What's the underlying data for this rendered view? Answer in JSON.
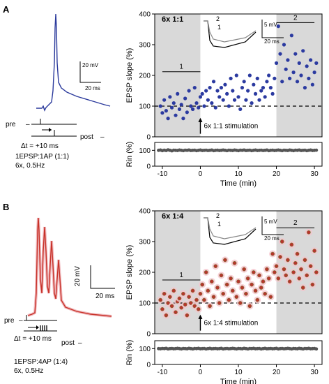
{
  "panels": [
    {
      "letter": "A",
      "protocol_title": "6x 1:1",
      "pairing_label": "1EPSP:1AP (1:1)",
      "repeat_label": "6x, 0.5Hz",
      "delta_t": "Δt = +10 ms",
      "pre": "pre",
      "post": "post",
      "scalebar_v": "20 mV",
      "scalebar_h": "20 ms",
      "inset_v": "5 mV",
      "inset_h": "20 ms",
      "inset_1": "1",
      "inset_2": "2",
      "stim_label": "6x 1:1 stimulation",
      "period1": "1",
      "period2": "2",
      "trace_color": "#2b3a9c",
      "dot_color": "#2b3aa0"
    },
    {
      "letter": "B",
      "protocol_title": "6x 1:4",
      "pairing_label": "1EPSP:4AP (1:4)",
      "repeat_label": "6x, 0.5Hz",
      "delta_t": "Δt = +10 ms",
      "pre": "pre",
      "post": "post",
      "scalebar_v": "20 mV",
      "scalebar_h": "20 ms",
      "inset_v": "5 mV",
      "inset_h": "20 ms",
      "inset_1": "1",
      "inset_2": "2",
      "stim_label": "6x 1:4 stimulation",
      "period1": "1",
      "period2": "2",
      "trace_color": "#c8332a",
      "dot_color": "#b5362c"
    }
  ],
  "chart_data": [
    {
      "type": "scatter",
      "title": "6x 1:1",
      "xlabel": "Time (min)",
      "ylabel": "EPSP slope (%)",
      "xlim": [
        -12,
        32
      ],
      "ylim": [
        0,
        400
      ],
      "xticks": [
        -10,
        0,
        10,
        20,
        30
      ],
      "yticks": [
        0,
        100,
        200,
        300,
        400
      ],
      "baseline": 100,
      "shaded_periods": [
        [
          -12,
          0
        ],
        [
          20,
          32
        ]
      ],
      "period_bars": [
        {
          "label": "1",
          "x": [
            -10,
            0
          ],
          "y": 212
        },
        {
          "label": "2",
          "x": [
            20,
            30
          ],
          "y": 372
        }
      ],
      "x": [
        -10.5,
        -10,
        -9.5,
        -9,
        -8.5,
        -8,
        -7.5,
        -7,
        -6.5,
        -6,
        -5.5,
        -5,
        -4.5,
        -4,
        -3.5,
        -3,
        -2.5,
        -2,
        -1.5,
        -1,
        -0.5,
        0,
        0.5,
        1,
        1.5,
        2,
        2.5,
        3,
        3.5,
        4,
        4.5,
        5,
        5.5,
        6,
        6.5,
        7,
        7.5,
        8,
        8.5,
        9,
        9.5,
        10,
        10.5,
        11,
        11.5,
        12,
        12.5,
        13,
        13.5,
        14,
        14.5,
        15,
        15.5,
        16,
        16.5,
        17,
        17.5,
        18,
        18.5,
        19,
        19.5,
        20,
        20.5,
        21,
        21.5,
        22,
        22.5,
        23,
        23.5,
        24,
        24.5,
        25,
        25.5,
        26,
        26.5,
        27,
        27.5,
        28,
        28.5,
        29,
        29.5,
        30,
        30.5
      ],
      "y": [
        100,
        78,
        120,
        85,
        60,
        130,
        95,
        110,
        70,
        140,
        90,
        105,
        60,
        125,
        80,
        150,
        100,
        90,
        160,
        110,
        95,
        130,
        140,
        100,
        150,
        120,
        160,
        110,
        180,
        95,
        150,
        130,
        160,
        120,
        170,
        140,
        100,
        190,
        150,
        120,
        200,
        130,
        90,
        160,
        180,
        120,
        150,
        200,
        110,
        170,
        140,
        190,
        120,
        150,
        160,
        130,
        180,
        200,
        160,
        140,
        190,
        240,
        360,
        270,
        180,
        300,
        220,
        250,
        190,
        330,
        210,
        270,
        180,
        240,
        200,
        280,
        160,
        230,
        190,
        250,
        170,
        210,
        240
      ],
      "stimulation_at": 0,
      "stimulation_label": "6x 1:1 stimulation"
    },
    {
      "type": "scatter",
      "title": "6x 1:4",
      "xlabel": "Time (min)",
      "ylabel": "EPSP slope (%)",
      "xlim": [
        -12,
        32
      ],
      "ylim": [
        0,
        400
      ],
      "xticks": [
        -10,
        0,
        10,
        20,
        30
      ],
      "yticks": [
        0,
        100,
        200,
        300,
        400
      ],
      "baseline": 100,
      "shaded_periods": [
        [
          -12,
          0
        ],
        [
          20,
          32
        ]
      ],
      "period_bars": [
        {
          "label": "1",
          "x": [
            -10,
            0
          ],
          "y": 175
        },
        {
          "label": "2",
          "x": [
            20,
            30
          ],
          "y": 345
        }
      ],
      "x": [
        -10.5,
        -10,
        -9.5,
        -9,
        -8.5,
        -8,
        -7.5,
        -7,
        -6.5,
        -6,
        -5.5,
        -5,
        -4.5,
        -4,
        -3.5,
        -3,
        -2.5,
        -2,
        -1.5,
        -1,
        -0.5,
        0,
        0.5,
        1,
        1.5,
        2,
        2.5,
        3,
        3.5,
        4,
        4.5,
        5,
        5.5,
        6,
        6.5,
        7,
        7.5,
        8,
        8.5,
        9,
        9.5,
        10,
        10.5,
        11,
        11.5,
        12,
        12.5,
        13,
        13.5,
        14,
        14.5,
        15,
        15.5,
        16,
        16.5,
        17,
        17.5,
        18,
        18.5,
        19,
        19.5,
        20,
        20.5,
        21,
        21.5,
        22,
        22.5,
        23,
        23.5,
        24,
        24.5,
        25,
        25.5,
        26,
        26.5,
        27,
        27.5,
        28,
        28.5,
        29,
        29.5,
        30,
        30.5
      ],
      "y": [
        110,
        80,
        130,
        60,
        100,
        120,
        90,
        140,
        70,
        105,
        115,
        85,
        130,
        95,
        60,
        120,
        100,
        140,
        90,
        110,
        80,
        130,
        160,
        110,
        200,
        140,
        90,
        170,
        120,
        220,
        150,
        100,
        190,
        130,
        240,
        160,
        110,
        180,
        140,
        230,
        120,
        170,
        100,
        150,
        210,
        130,
        180,
        90,
        160,
        200,
        140,
        110,
        190,
        150,
        170,
        130,
        210,
        180,
        120,
        260,
        200,
        220,
        180,
        250,
        300,
        210,
        190,
        240,
        170,
        290,
        200,
        230,
        260,
        180,
        210,
        150,
        240,
        190,
        330,
        220,
        160,
        270,
        200
      ],
      "stimulation_at": 0,
      "stimulation_label": "6x 1:4 stimulation"
    },
    {
      "type": "scatter",
      "title": "",
      "xlabel": "",
      "ylabel": "Rin (%)",
      "ylim": [
        0,
        150
      ],
      "yticks": [
        0,
        100
      ],
      "x": [
        -11,
        -10.5,
        -10,
        -9.5,
        -9,
        -8.5,
        -8,
        -7.5,
        -7,
        -6.5,
        -6,
        -5.5,
        -5,
        -4.5,
        -4,
        -3.5,
        -3,
        -2.5,
        -2,
        -1.5,
        -1,
        -0.5,
        0,
        0.5,
        1,
        1.5,
        2,
        2.5,
        3,
        3.5,
        4,
        4.5,
        5,
        5.5,
        6,
        6.5,
        7,
        7.5,
        8,
        8.5,
        9,
        9.5,
        10,
        10.5,
        11,
        11.5,
        12,
        12.5,
        13,
        13.5,
        14,
        14.5,
        15,
        15.5,
        16,
        16.5,
        17,
        17.5,
        18,
        18.5,
        19,
        19.5,
        20,
        20.5,
        21,
        21.5,
        22,
        22.5,
        23,
        23.5,
        24,
        24.5,
        25,
        25.5,
        26,
        26.5,
        27,
        27.5,
        28,
        28.5,
        29,
        29.5,
        30,
        30.5
      ],
      "y": [
        100,
        102,
        98,
        101,
        99,
        103,
        100,
        97,
        101,
        100,
        99,
        102,
        100,
        98,
        101,
        100,
        102,
        99,
        100,
        101,
        98,
        100,
        102,
        99,
        100,
        101,
        99,
        100,
        102,
        98,
        100,
        101,
        99,
        100,
        102,
        100,
        98,
        101,
        100,
        99,
        102,
        100,
        98,
        101,
        100,
        102,
        99,
        100,
        101,
        98,
        100,
        102,
        99,
        100,
        101,
        99,
        100,
        102,
        98,
        100,
        101,
        99,
        100,
        102,
        100,
        98,
        101,
        100,
        99,
        102,
        100,
        98,
        101,
        100,
        102,
        99,
        100,
        101,
        98,
        100,
        102,
        99,
        100,
        101
      ]
    },
    {
      "type": "scatter",
      "title": "",
      "xlabel": "",
      "ylabel": "Rin (%)",
      "ylim": [
        0,
        150
      ],
      "yticks": [
        0,
        100
      ],
      "x": [
        -11,
        -10.5,
        -10,
        -9.5,
        -9,
        -8.5,
        -8,
        -7.5,
        -7,
        -6.5,
        -6,
        -5.5,
        -5,
        -4.5,
        -4,
        -3.5,
        -3,
        -2.5,
        -2,
        -1.5,
        -1,
        -0.5,
        0,
        0.5,
        1,
        1.5,
        2,
        2.5,
        3,
        3.5,
        4,
        4.5,
        5,
        5.5,
        6,
        6.5,
        7,
        7.5,
        8,
        8.5,
        9,
        9.5,
        10,
        10.5,
        11,
        11.5,
        12,
        12.5,
        13,
        13.5,
        14,
        14.5,
        15,
        15.5,
        16,
        16.5,
        17,
        17.5,
        18,
        18.5,
        19,
        19.5,
        20,
        20.5,
        21,
        21.5,
        22,
        22.5,
        23,
        23.5,
        24,
        24.5,
        25,
        25.5,
        26,
        26.5,
        27,
        27.5,
        28,
        28.5,
        29,
        29.5,
        30,
        30.5
      ],
      "y": [
        100,
        99,
        101,
        100,
        102,
        98,
        100,
        101,
        99,
        100,
        102,
        100,
        98,
        101,
        100,
        99,
        102,
        100,
        98,
        101,
        100,
        102,
        99,
        100,
        101,
        98,
        100,
        102,
        99,
        100,
        101,
        99,
        100,
        102,
        98,
        100,
        101,
        99,
        100,
        102,
        100,
        98,
        101,
        100,
        99,
        102,
        100,
        98,
        101,
        100,
        102,
        99,
        100,
        101,
        98,
        100,
        102,
        99,
        100,
        101,
        99,
        100,
        102,
        98,
        100,
        101,
        99,
        100,
        102,
        100,
        98,
        101,
        100,
        99,
        102,
        100,
        98,
        101,
        100,
        102,
        99,
        100,
        101,
        98
      ]
    }
  ]
}
